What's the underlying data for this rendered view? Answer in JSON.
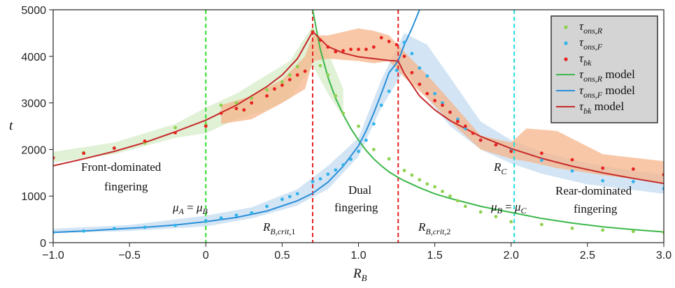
{
  "chart_data": {
    "type": "scatter",
    "xlabel": "R",
    "xlabel_sub": "B",
    "ylabel": "t",
    "xlim": [
      -1.0,
      3.0
    ],
    "ylim": [
      0,
      5000
    ],
    "xticks": [
      -1.0,
      -0.5,
      0,
      0.5,
      1.0,
      1.5,
      2.0,
      2.5,
      3.0
    ],
    "xtick_labels": [
      "−1.0",
      "−0.5",
      "0",
      "0.5",
      "1.0",
      "1.5",
      "2.0",
      "2.5",
      "3.0"
    ],
    "yticks": [
      0,
      1000,
      2000,
      3000,
      4000,
      5000
    ],
    "ytick_labels": [
      "0",
      "1000",
      "2000",
      "3000",
      "4000",
      "5000"
    ],
    "grid": false,
    "legend_position": "top-right",
    "colors": {
      "green": "#3cb84a",
      "blue": "#2a8fd8",
      "red": "#d32f2f",
      "green_band": "#d6ecc8",
      "blue_band": "#c4dcf2",
      "red_band": "#f6b48a",
      "green_dots": "#8fd14f",
      "blue_dots": "#33b3ea",
      "red_dots": "#e8231f"
    },
    "vlines": [
      {
        "x": 0.0,
        "color": "#33dd33"
      },
      {
        "x": 0.7,
        "color": "#e62222"
      },
      {
        "x": 1.26,
        "color": "#e62222"
      },
      {
        "x": 2.02,
        "color": "#22dddd"
      }
    ],
    "series": [
      {
        "name": "τ_ons,R",
        "kind": "points",
        "color": "#8fd14f",
        "x": [
          -1.0,
          -0.8,
          -0.6,
          -0.4,
          -0.2,
          0.0,
          0.1,
          0.2,
          0.3,
          0.4,
          0.5,
          0.55,
          0.6,
          0.7,
          0.75,
          0.8,
          0.85,
          0.9,
          1.0,
          1.1,
          1.2,
          1.3,
          1.35,
          1.4,
          1.45,
          1.5,
          1.55,
          1.6,
          1.65,
          1.7,
          1.8,
          1.9,
          2.0,
          2.2,
          2.4,
          2.6,
          2.8,
          3.0
        ],
        "y": [
          1820,
          1930,
          2030,
          2140,
          2470,
          2530,
          2950,
          3000,
          3100,
          3280,
          3450,
          3600,
          3780,
          4540,
          3800,
          3600,
          3150,
          2780,
          2500,
          2000,
          1800,
          1550,
          1450,
          1350,
          1260,
          1200,
          1100,
          1000,
          900,
          780,
          660,
          560,
          450,
          390,
          310,
          270,
          240,
          220
        ]
      },
      {
        "name": "τ_ons,F",
        "kind": "points",
        "color": "#33b3ea",
        "x": [
          -1.0,
          -0.8,
          -0.6,
          -0.4,
          -0.2,
          0.0,
          0.1,
          0.2,
          0.3,
          0.4,
          0.5,
          0.55,
          0.6,
          0.7,
          0.75,
          0.8,
          0.85,
          0.9,
          0.95,
          1.0,
          1.05,
          1.1,
          1.15,
          1.2,
          1.25,
          1.3,
          1.35,
          1.4,
          1.45,
          1.5,
          1.55,
          1.6,
          1.65,
          1.7,
          1.8,
          1.9,
          2.0,
          2.2,
          2.4,
          2.6,
          2.8,
          3.0
        ],
        "y": [
          220,
          250,
          300,
          330,
          370,
          470,
          530,
          590,
          640,
          780,
          930,
          990,
          1050,
          1310,
          1370,
          1470,
          1560,
          1670,
          1790,
          1960,
          2200,
          2550,
          2950,
          3250,
          3700,
          4300,
          4060,
          3750,
          3580,
          3200,
          3000,
          2800,
          2650,
          2450,
          2200,
          2100,
          1980,
          1770,
          1540,
          1330,
          1310,
          1160
        ]
      },
      {
        "name": "τ_bk",
        "kind": "points",
        "color": "#e8231f",
        "x": [
          -1.0,
          -0.8,
          -0.6,
          -0.4,
          -0.2,
          0.0,
          0.1,
          0.2,
          0.25,
          0.3,
          0.4,
          0.45,
          0.5,
          0.55,
          0.6,
          0.65,
          0.7,
          0.75,
          0.8,
          0.85,
          0.9,
          0.95,
          1.0,
          1.05,
          1.1,
          1.15,
          1.2,
          1.25,
          1.3,
          1.35,
          1.4,
          1.45,
          1.5,
          1.55,
          1.6,
          1.65,
          1.7,
          1.75,
          1.8,
          1.9,
          2.0,
          2.2,
          2.4,
          2.6,
          2.8,
          3.0
        ],
        "y": [
          1820,
          1920,
          2030,
          2180,
          2360,
          2500,
          2780,
          2880,
          2850,
          3000,
          3150,
          3300,
          3380,
          3500,
          3600,
          3680,
          4520,
          4350,
          4200,
          4100,
          4120,
          4150,
          4150,
          4150,
          4200,
          4400,
          4320,
          4250,
          4000,
          3650,
          3400,
          3200,
          3050,
          2950,
          2800,
          2600,
          2500,
          2350,
          2200,
          2100,
          1960,
          1920,
          1780,
          1600,
          1580,
          1460
        ]
      },
      {
        "name": "τ_ons,R model",
        "kind": "line",
        "color": "#3cb84a",
        "x": [
          0.7,
          0.75,
          0.8,
          0.85,
          0.9,
          0.95,
          1.0,
          1.05,
          1.1,
          1.15,
          1.2,
          1.26,
          1.3,
          1.4,
          1.5,
          1.6,
          1.8,
          2.0,
          2.2,
          2.4,
          2.6,
          2.8,
          3.0
        ],
        "y": [
          5000,
          4150,
          3550,
          3100,
          2750,
          2450,
          2200,
          1980,
          1800,
          1650,
          1520,
          1400,
          1330,
          1180,
          1050,
          950,
          780,
          650,
          520,
          420,
          340,
          280,
          230
        ]
      },
      {
        "name": "τ_ons,F model",
        "kind": "line",
        "color": "#2a8fd8",
        "x": [
          -1.0,
          -0.8,
          -0.6,
          -0.4,
          -0.2,
          0.0,
          0.2,
          0.4,
          0.6,
          0.7,
          0.8,
          0.9,
          1.0,
          1.05,
          1.1,
          1.15,
          1.2,
          1.26,
          1.3,
          1.35,
          1.4
        ],
        "y": [
          220,
          250,
          290,
          330,
          380,
          450,
          540,
          680,
          900,
          1060,
          1300,
          1640,
          2080,
          2400,
          2780,
          3200,
          3650,
          3900,
          4250,
          4600,
          5000
        ]
      },
      {
        "name": "τ_bk model",
        "kind": "line",
        "color": "#c62a2a",
        "x": [
          -1.0,
          -0.8,
          -0.6,
          -0.4,
          -0.2,
          0.0,
          0.2,
          0.4,
          0.5,
          0.6,
          0.7,
          0.8,
          0.9,
          1.0,
          1.1,
          1.2,
          1.26,
          1.3,
          1.4,
          1.5,
          1.6,
          1.8,
          2.0,
          2.2,
          2.4,
          2.6,
          2.8,
          3.0
        ],
        "y": [
          1650,
          1800,
          1960,
          2150,
          2380,
          2630,
          2950,
          3350,
          3600,
          3950,
          4530,
          4210,
          4070,
          3990,
          3950,
          3910,
          3900,
          3630,
          3150,
          2850,
          2620,
          2280,
          2020,
          1810,
          1640,
          1500,
          1380,
          1270
        ]
      }
    ],
    "bands": [
      {
        "name": "τ_ons,R band",
        "color": "#d6ecc8",
        "x": [
          -1.0,
          -0.6,
          -0.2,
          0.0,
          0.2,
          0.4,
          0.55,
          0.7,
          0.8,
          0.9
        ],
        "lower": [
          1720,
          1900,
          2250,
          2350,
          2650,
          2850,
          3100,
          3800,
          3200,
          2700
        ],
        "upper": [
          1950,
          2150,
          2550,
          2900,
          3200,
          3600,
          3900,
          4650,
          4100,
          3300
        ]
      },
      {
        "name": "τ_ons,F band",
        "color": "#c4dcf2",
        "x": [
          -1.0,
          -0.5,
          0.0,
          0.3,
          0.6,
          0.8,
          1.0,
          1.15,
          1.3,
          1.45,
          1.6,
          1.8,
          2.0,
          2.2,
          2.5,
          3.0
        ],
        "lower": [
          200,
          250,
          350,
          520,
          800,
          1150,
          1850,
          2900,
          3700,
          3100,
          2500,
          2000,
          1700,
          1480,
          1250,
          1050
        ],
        "upper": [
          300,
          380,
          580,
          760,
          1150,
          1650,
          2250,
          3500,
          4500,
          4250,
          3550,
          2600,
          2200,
          1950,
          1700,
          1450
        ]
      },
      {
        "name": "τ_bk band",
        "color": "#f6b48a",
        "x": [
          0.1,
          0.3,
          0.5,
          0.65,
          0.7,
          0.8,
          1.0,
          1.1,
          1.2,
          1.3,
          1.45,
          1.6,
          1.8,
          2.0,
          2.1,
          2.3,
          2.6,
          3.0
        ],
        "lower": [
          2550,
          2650,
          3000,
          3300,
          3900,
          3950,
          3900,
          3850,
          3900,
          3550,
          3100,
          2600,
          2000,
          1800,
          1750,
          1600,
          1450,
          1280
        ],
        "upper": [
          2950,
          3150,
          3500,
          4000,
          4450,
          4450,
          4600,
          4550,
          4450,
          4100,
          3600,
          3050,
          2300,
          2150,
          2450,
          2400,
          1900,
          1750
        ]
      }
    ],
    "legend": [
      {
        "label": "τ",
        "sub": "ons,R",
        "suffix": "",
        "kind": "dot",
        "color": "#8fd14f"
      },
      {
        "label": "τ",
        "sub": "ons,F",
        "suffix": "",
        "kind": "dot",
        "color": "#33b3ea"
      },
      {
        "label": "τ",
        "sub": "bk",
        "suffix": "",
        "kind": "dot",
        "color": "#e8231f"
      },
      {
        "label": "τ",
        "sub": "ons,R",
        "suffix": " model",
        "kind": "line",
        "color": "#3cb84a"
      },
      {
        "label": "τ",
        "sub": "ons,F",
        "suffix": " model",
        "kind": "line",
        "color": "#2a8fd8"
      },
      {
        "label": "τ",
        "sub": "bk",
        "suffix": " model",
        "kind": "line",
        "color": "#c62a2a"
      }
    ],
    "annotations": {
      "front_line1": "Front-dominated",
      "front_line2": "fingering",
      "dual_line1": "Dual",
      "dual_line2": "fingering",
      "rear_line1": "Rear-dominated",
      "rear_line2": "fingering",
      "muA": "μ",
      "muA_sub": "A",
      "muA_eq": " = ",
      "muA_rhs": "μ",
      "muA_rhs_sub": "B",
      "muB": "μ",
      "muB_sub": "B",
      "muB_eq": " = ",
      "muB_rhs": "μ",
      "muB_rhs_sub": "C",
      "rcrit1": "R",
      "rcrit1_sub": "B,crit",
      "rcrit1_sub2": ",1",
      "rcrit2": "R",
      "rcrit2_sub": "B,crit",
      "rcrit2_sub2": ",2",
      "rc": "R",
      "rc_sub": "C"
    }
  }
}
